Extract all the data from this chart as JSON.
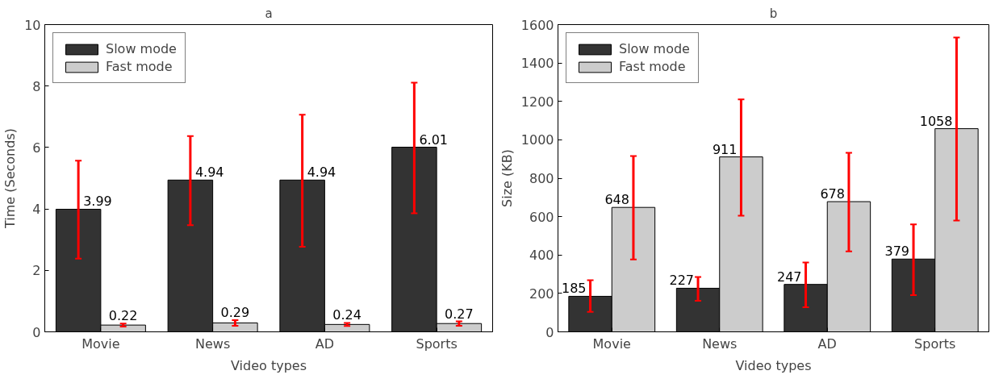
{
  "chart_data": [
    {
      "type": "bar",
      "title": "a",
      "xlabel": "Video types",
      "ylabel": "Time (Seconds)",
      "categories": [
        "Movie",
        "News",
        "AD",
        "Sports"
      ],
      "series": [
        {
          "name": "Slow mode",
          "color": "#333333",
          "values": [
            3.99,
            4.94,
            4.94,
            6.01
          ],
          "errors": [
            [
              2.38,
              5.57
            ],
            [
              3.47,
              6.37
            ],
            [
              2.77,
              7.07
            ],
            [
              3.86,
              8.11
            ]
          ]
        },
        {
          "name": "Fast mode",
          "color": "#cccccc",
          "values": [
            0.22,
            0.29,
            0.24,
            0.27
          ],
          "errors": [
            [
              0.17,
              0.27
            ],
            [
              0.2,
              0.38
            ],
            [
              0.19,
              0.29
            ],
            [
              0.2,
              0.34
            ]
          ]
        }
      ],
      "ylim": [
        0,
        10
      ],
      "yticks": [
        0,
        2,
        4,
        6,
        8,
        10
      ],
      "data_labels": true,
      "legend": "top left",
      "grid": false
    },
    {
      "type": "bar",
      "title": "b",
      "xlabel": "Video types",
      "ylabel": "Size (KB)",
      "categories": [
        "Movie",
        "News",
        "AD",
        "Sports"
      ],
      "series": [
        {
          "name": "Slow mode",
          "color": "#333333",
          "values": [
            185,
            227,
            247,
            379
          ],
          "errors": [
            [
              104,
              269
            ],
            [
              162,
              286
            ],
            [
              128,
              361
            ],
            [
              191,
              560
            ]
          ]
        },
        {
          "name": "Fast mode",
          "color": "#cccccc",
          "values": [
            648,
            911,
            678,
            1058
          ],
          "errors": [
            [
              377,
              916
            ],
            [
              605,
              1210
            ],
            [
              419,
              932
            ],
            [
              580,
              1533
            ]
          ]
        }
      ],
      "ylim": [
        0,
        1600
      ],
      "yticks": [
        0,
        200,
        400,
        600,
        800,
        1000,
        1200,
        1400,
        1600
      ],
      "data_labels": true,
      "legend": "top left",
      "grid": false
    }
  ]
}
